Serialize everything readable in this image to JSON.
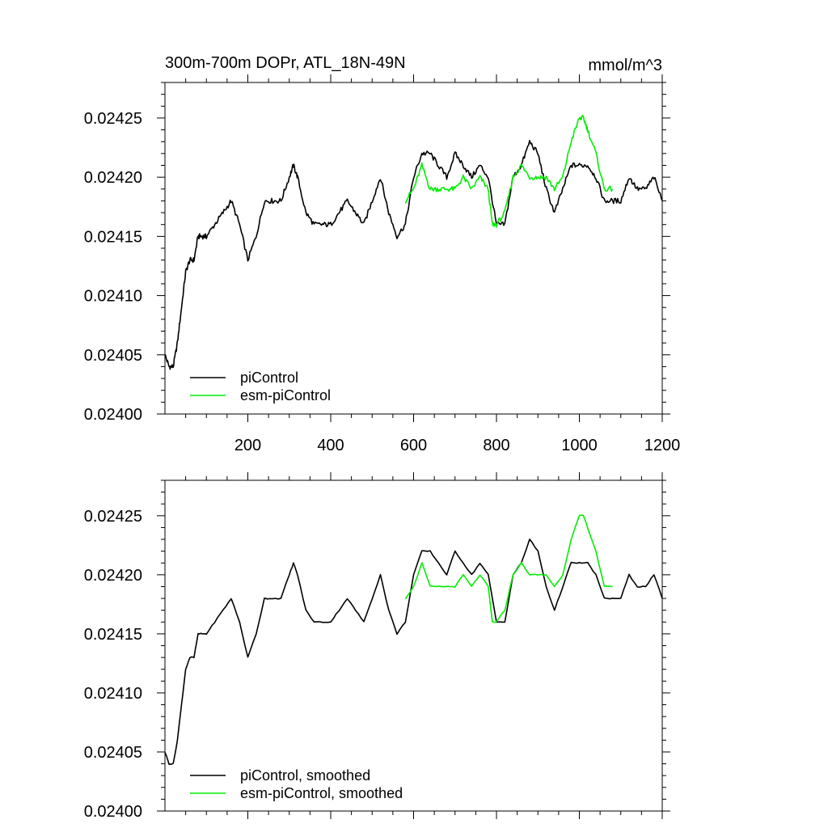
{
  "chart_data": [
    {
      "type": "line",
      "title": "300m-700m DOPr, ATL_18N-49N",
      "units": "mmol/m^3",
      "xlim": [
        0,
        1200
      ],
      "ylim": [
        0.024,
        0.02428
      ],
      "xticks": [
        200,
        400,
        600,
        800,
        1000,
        1200
      ],
      "xtick_labels": [
        "200",
        "400",
        "600",
        "800",
        "1000",
        "1200"
      ],
      "yticks": [
        0.024,
        0.02405,
        0.0241,
        0.02415,
        0.0242,
        0.02425
      ],
      "ytick_labels": [
        "0.02400",
        "0.02405",
        "0.02410",
        "0.02415",
        "0.02420",
        "0.02425"
      ],
      "legend_position": "bottom-left",
      "series": [
        {
          "name": "piControl",
          "color": "#000000",
          "x": [
            0,
            10,
            20,
            30,
            40,
            50,
            60,
            70,
            80,
            90,
            100,
            120,
            140,
            160,
            180,
            200,
            220,
            240,
            260,
            280,
            300,
            310,
            320,
            340,
            360,
            380,
            400,
            420,
            440,
            460,
            480,
            500,
            520,
            540,
            560,
            580,
            600,
            620,
            640,
            660,
            680,
            700,
            720,
            740,
            760,
            780,
            800,
            820,
            840,
            860,
            880,
            900,
            920,
            940,
            960,
            980,
            1000,
            1020,
            1040,
            1060,
            1080,
            1100,
            1120,
            1140,
            1160,
            1180,
            1200
          ],
          "values": [
            0.02405,
            0.02404,
            0.02404,
            0.02406,
            0.02409,
            0.02412,
            0.02413,
            0.02413,
            0.02415,
            0.02415,
            0.02415,
            0.02416,
            0.02417,
            0.02418,
            0.02416,
            0.02413,
            0.02415,
            0.02418,
            0.02418,
            0.02418,
            0.0242,
            0.02421,
            0.0242,
            0.02417,
            0.02416,
            0.02416,
            0.02416,
            0.02417,
            0.02418,
            0.02417,
            0.02416,
            0.02418,
            0.0242,
            0.02417,
            0.02415,
            0.02416,
            0.0242,
            0.02422,
            0.02422,
            0.02421,
            0.0242,
            0.02422,
            0.02421,
            0.0242,
            0.02421,
            0.0242,
            0.02416,
            0.02416,
            0.0242,
            0.02421,
            0.02423,
            0.02422,
            0.02419,
            0.02417,
            0.02419,
            0.02421,
            0.02421,
            0.02421,
            0.0242,
            0.02418,
            0.02418,
            0.02418,
            0.0242,
            0.02419,
            0.02419,
            0.0242,
            0.02418
          ]
        },
        {
          "name": "esm-piControl",
          "color": "#00ee00",
          "x": [
            580,
            600,
            620,
            640,
            660,
            680,
            700,
            720,
            740,
            760,
            780,
            790,
            800,
            820,
            840,
            860,
            880,
            900,
            920,
            940,
            960,
            980,
            1000,
            1010,
            1020,
            1040,
            1060,
            1080
          ],
          "values": [
            0.02418,
            0.02419,
            0.02421,
            0.02419,
            0.02419,
            0.02419,
            0.02419,
            0.0242,
            0.02419,
            0.0242,
            0.02419,
            0.02416,
            0.02416,
            0.02417,
            0.0242,
            0.02421,
            0.0242,
            0.0242,
            0.0242,
            0.02419,
            0.0242,
            0.02423,
            0.02425,
            0.02425,
            0.02424,
            0.02422,
            0.02419,
            0.02419
          ]
        }
      ]
    },
    {
      "type": "line",
      "title": "",
      "xlim": [
        0,
        1200
      ],
      "ylim": [
        0.024,
        0.02428
      ],
      "yticks": [
        0.024,
        0.02405,
        0.0241,
        0.02415,
        0.0242,
        0.02425
      ],
      "ytick_labels": [
        "0.02400",
        "0.02405",
        "0.02410",
        "0.02415",
        "0.02420",
        "0.02425"
      ],
      "legend_position": "bottom-left",
      "series": [
        {
          "name": "piControl, smoothed",
          "color": "#000000",
          "x": [
            0,
            10,
            20,
            30,
            40,
            50,
            60,
            70,
            80,
            90,
            100,
            120,
            140,
            160,
            180,
            200,
            220,
            240,
            260,
            280,
            300,
            310,
            320,
            340,
            360,
            380,
            400,
            420,
            440,
            460,
            480,
            500,
            520,
            540,
            560,
            580,
            600,
            620,
            640,
            660,
            680,
            700,
            720,
            740,
            760,
            780,
            800,
            820,
            840,
            860,
            880,
            900,
            920,
            940,
            960,
            980,
            1000,
            1020,
            1040,
            1060,
            1080,
            1100,
            1120,
            1140,
            1160,
            1180,
            1200
          ],
          "values": [
            0.02405,
            0.02404,
            0.02404,
            0.02406,
            0.02409,
            0.02412,
            0.02413,
            0.02413,
            0.02415,
            0.02415,
            0.02415,
            0.02416,
            0.02417,
            0.02418,
            0.02416,
            0.02413,
            0.02415,
            0.02418,
            0.02418,
            0.02418,
            0.0242,
            0.02421,
            0.0242,
            0.02417,
            0.02416,
            0.02416,
            0.02416,
            0.02417,
            0.02418,
            0.02417,
            0.02416,
            0.02418,
            0.0242,
            0.02417,
            0.02415,
            0.02416,
            0.0242,
            0.02422,
            0.02422,
            0.02421,
            0.0242,
            0.02422,
            0.02421,
            0.0242,
            0.02421,
            0.0242,
            0.02416,
            0.02416,
            0.0242,
            0.02421,
            0.02423,
            0.02422,
            0.02419,
            0.02417,
            0.02419,
            0.02421,
            0.02421,
            0.02421,
            0.0242,
            0.02418,
            0.02418,
            0.02418,
            0.0242,
            0.02419,
            0.02419,
            0.0242,
            0.02418
          ]
        },
        {
          "name": "esm-piControl, smoothed",
          "color": "#00ee00",
          "x": [
            580,
            600,
            620,
            640,
            660,
            680,
            700,
            720,
            740,
            760,
            780,
            790,
            800,
            820,
            840,
            860,
            880,
            900,
            920,
            940,
            960,
            980,
            1000,
            1010,
            1020,
            1040,
            1060,
            1080
          ],
          "values": [
            0.02418,
            0.02419,
            0.02421,
            0.02419,
            0.02419,
            0.02419,
            0.02419,
            0.0242,
            0.02419,
            0.0242,
            0.02419,
            0.02416,
            0.02416,
            0.02417,
            0.0242,
            0.02421,
            0.0242,
            0.0242,
            0.0242,
            0.02419,
            0.0242,
            0.02423,
            0.02425,
            0.02425,
            0.02424,
            0.02422,
            0.02419,
            0.02419
          ]
        }
      ]
    }
  ]
}
